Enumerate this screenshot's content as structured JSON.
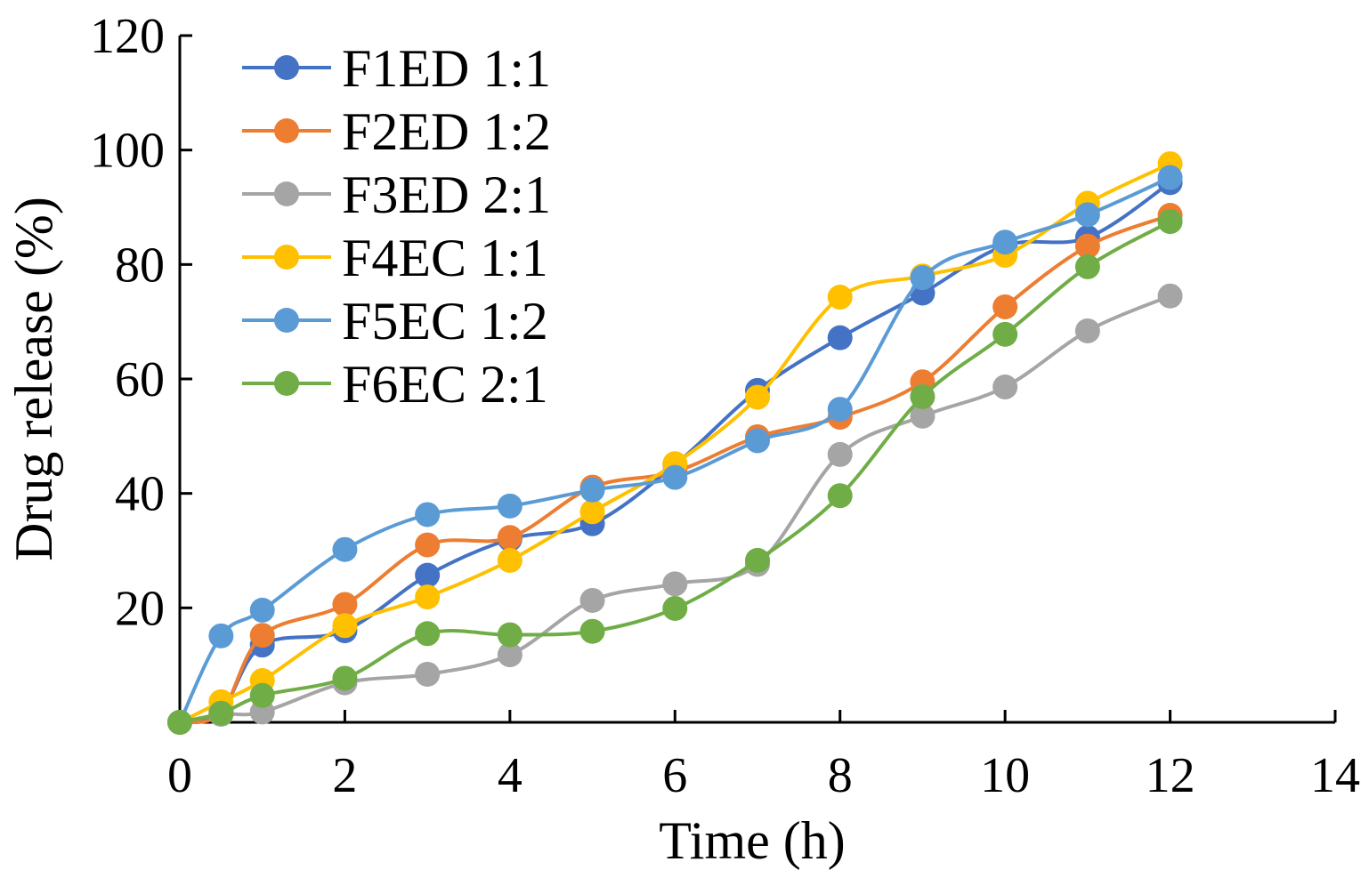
{
  "chart_data": {
    "type": "line",
    "title": "",
    "xlabel": "Time (h)",
    "ylabel": "Drug release (%)",
    "xlim": [
      0,
      14
    ],
    "ylim": [
      0,
      120
    ],
    "xticks": [
      0,
      2,
      4,
      6,
      8,
      10,
      12,
      14
    ],
    "yticks": [
      20,
      40,
      60,
      80,
      100,
      120
    ],
    "grid": false,
    "legend_position": "top-left",
    "x": [
      0,
      0.5,
      1,
      2,
      3,
      4,
      5,
      6,
      7,
      8,
      9,
      10,
      11,
      12
    ],
    "series": [
      {
        "name": "F1ED 1:1",
        "color": "#4472C4",
        "values": [
          0,
          2,
          13.5,
          16,
          25.7,
          32,
          34.7,
          45,
          58,
          67.2,
          75,
          83.3,
          84.7,
          94.3
        ]
      },
      {
        "name": "F2ED 1:2",
        "color": "#ED7D31",
        "values": [
          0,
          1.7,
          15.2,
          20.6,
          31,
          32.3,
          41.1,
          43.8,
          49.9,
          53.3,
          59.5,
          72.6,
          83.2,
          88.6
        ]
      },
      {
        "name": "F3ED 2:1",
        "color": "#A5A5A5",
        "values": [
          0,
          1.4,
          1.8,
          6.9,
          8.4,
          11.8,
          21.3,
          24.2,
          27.6,
          46.8,
          53.5,
          58.6,
          68.4,
          74.5
        ]
      },
      {
        "name": "F4EC 1:1",
        "color": "#FFC000",
        "values": [
          0,
          3.6,
          7.3,
          16.9,
          21.9,
          28.3,
          36.8,
          45.2,
          56.8,
          74.3,
          78,
          81.6,
          90.7,
          97.6
        ]
      },
      {
        "name": "F5EC 1:2",
        "color": "#5B9BD5",
        "values": [
          0,
          15.1,
          19.6,
          30.2,
          36.3,
          37.8,
          40.6,
          42.8,
          49.2,
          54.7,
          77.7,
          83.9,
          88.7,
          95.2
        ]
      },
      {
        "name": "F6EC 2:1",
        "color": "#70AD47",
        "values": [
          0,
          1.6,
          4.7,
          7.7,
          15.5,
          15.3,
          15.9,
          19.9,
          28.3,
          39.6,
          56.9,
          67.8,
          79.6,
          87.5
        ]
      }
    ]
  }
}
